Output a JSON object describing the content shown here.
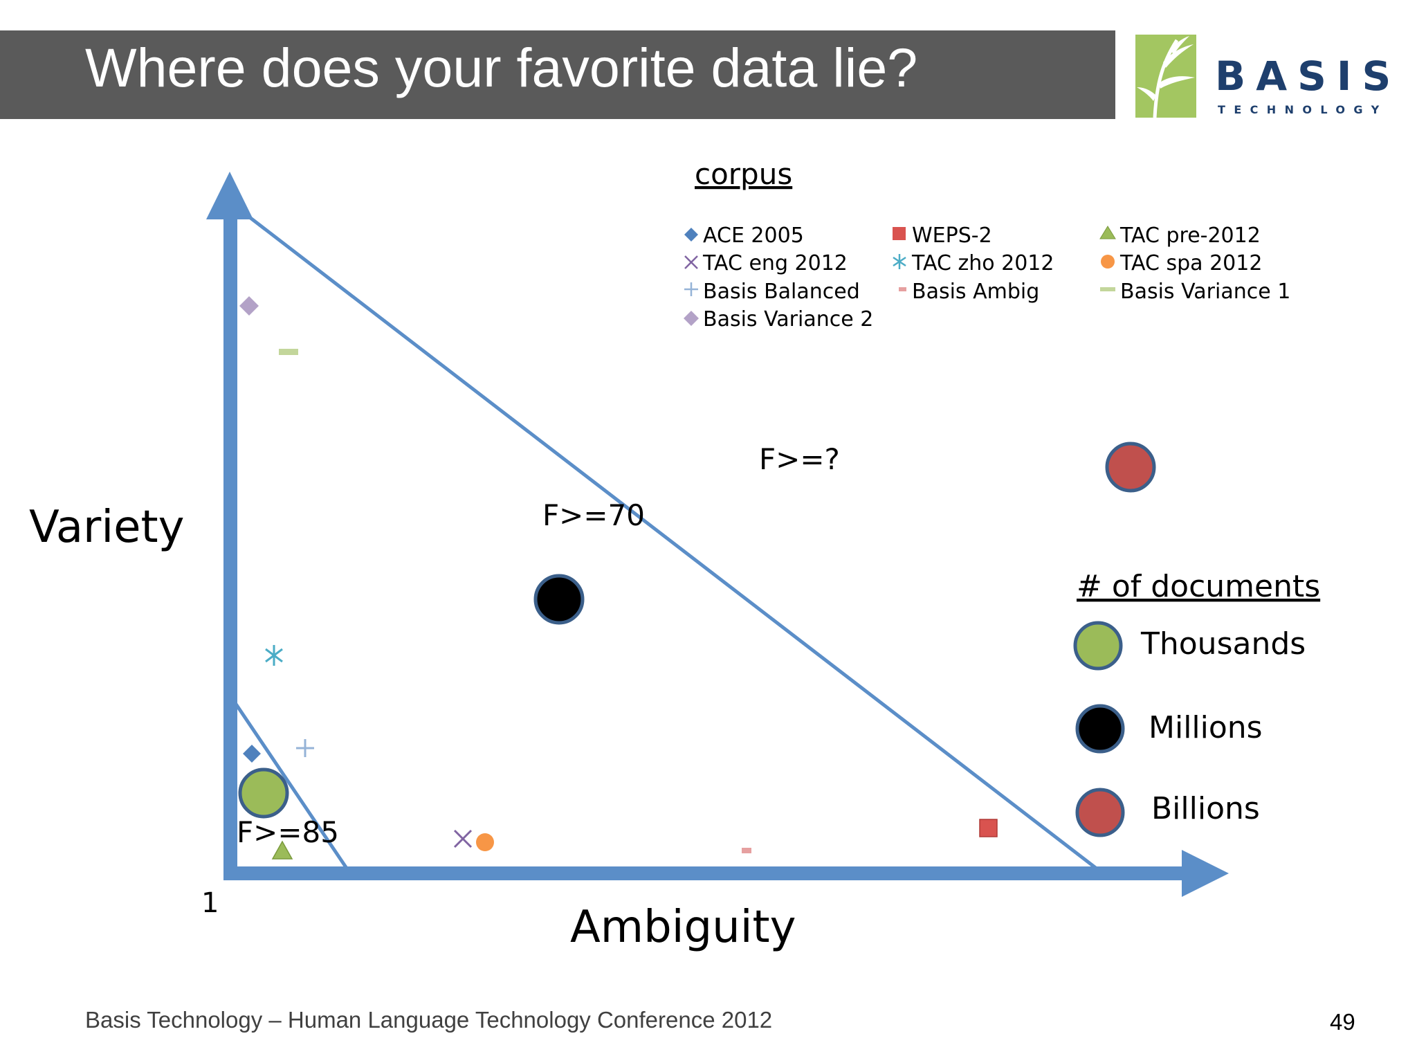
{
  "slide": {
    "title": "Where does your favorite data lie?",
    "footer": "Basis Technology – Human Language Technology Conference 2012",
    "page_number": "49"
  },
  "logo": {
    "word": "BASIS",
    "subword": "TECHNOLOGY",
    "color": "#1e3f6d",
    "leaf_color": "#a3c661"
  },
  "diagram": {
    "axis_y_label": "Variety",
    "axis_x_label": "Ambiguity",
    "origin_label": "1",
    "region_labels": [
      "F>=85",
      "F>=70",
      "F>=?"
    ],
    "axis_color": "#5b8ec8"
  },
  "corpus_legend": {
    "title": "corpus",
    "items": [
      {
        "label": "ACE 2005",
        "marker": "diamond",
        "color": "#4f81bd"
      },
      {
        "label": "WEPS-2",
        "marker": "square",
        "color": "#d9534f"
      },
      {
        "label": "TAC pre-2012",
        "marker": "triangle",
        "color": "#9bbb59"
      },
      {
        "label": "TAC eng 2012",
        "marker": "x",
        "color": "#8064a2"
      },
      {
        "label": "TAC zho 2012",
        "marker": "asterisk",
        "color": "#4bacc6"
      },
      {
        "label": "TAC spa 2012",
        "marker": "circle",
        "color": "#f79646"
      },
      {
        "label": "Basis Balanced",
        "marker": "plus",
        "color": "#95b3d7"
      },
      {
        "label": "Basis Ambig",
        "marker": "dash",
        "color": "#e6a0a0"
      },
      {
        "label": "Basis Variance 1",
        "marker": "dash",
        "color": "#c3d69b"
      },
      {
        "label": "Basis Variance 2",
        "marker": "diamond",
        "color": "#b3a2c7"
      }
    ]
  },
  "size_legend": {
    "title": "# of documents",
    "items": [
      {
        "label": "Thousands",
        "color": "#9bbb59"
      },
      {
        "label": "Millions",
        "color": "#000000"
      },
      {
        "label": "Billions",
        "color": "#c0504d"
      }
    ]
  }
}
